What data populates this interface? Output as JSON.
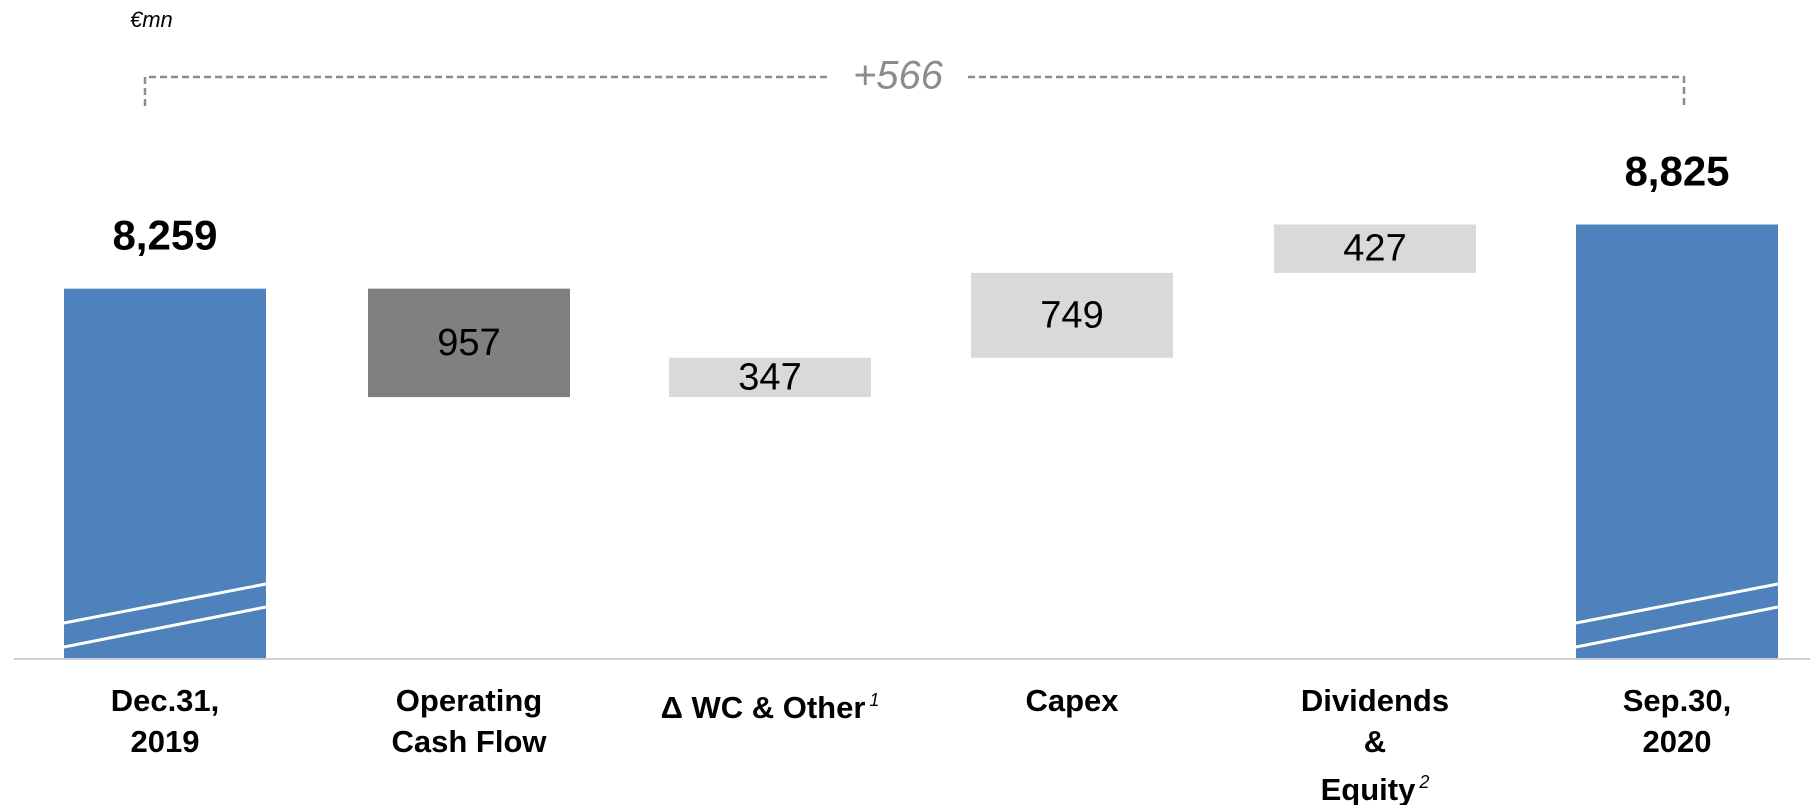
{
  "chart_data": {
    "type": "waterfall",
    "unit": "€mn",
    "annotation": "+566",
    "categories": [
      {
        "label": "Dec.31,\n2019"
      },
      {
        "label": "Operating\nCash Flow"
      },
      {
        "label": "Δ WC & Other",
        "note": "1"
      },
      {
        "label": "Capex"
      },
      {
        "label": "Dividends\n&\nEquity",
        "note": "2"
      },
      {
        "label": "Sep.30,\n2020"
      }
    ],
    "measures": [
      "total",
      "decrease",
      "increase",
      "increase",
      "increase",
      "total"
    ],
    "values": [
      8259,
      957,
      347,
      749,
      427,
      8825
    ],
    "value_labels": [
      "8,259",
      "957",
      "347",
      "749",
      "427",
      "8,825"
    ],
    "colors": [
      "#4f81bd",
      "#808080",
      "#d9d9d9",
      "#d9d9d9",
      "#d9d9d9",
      "#4f81bd"
    ],
    "ylim": [
      5000,
      9200
    ]
  }
}
